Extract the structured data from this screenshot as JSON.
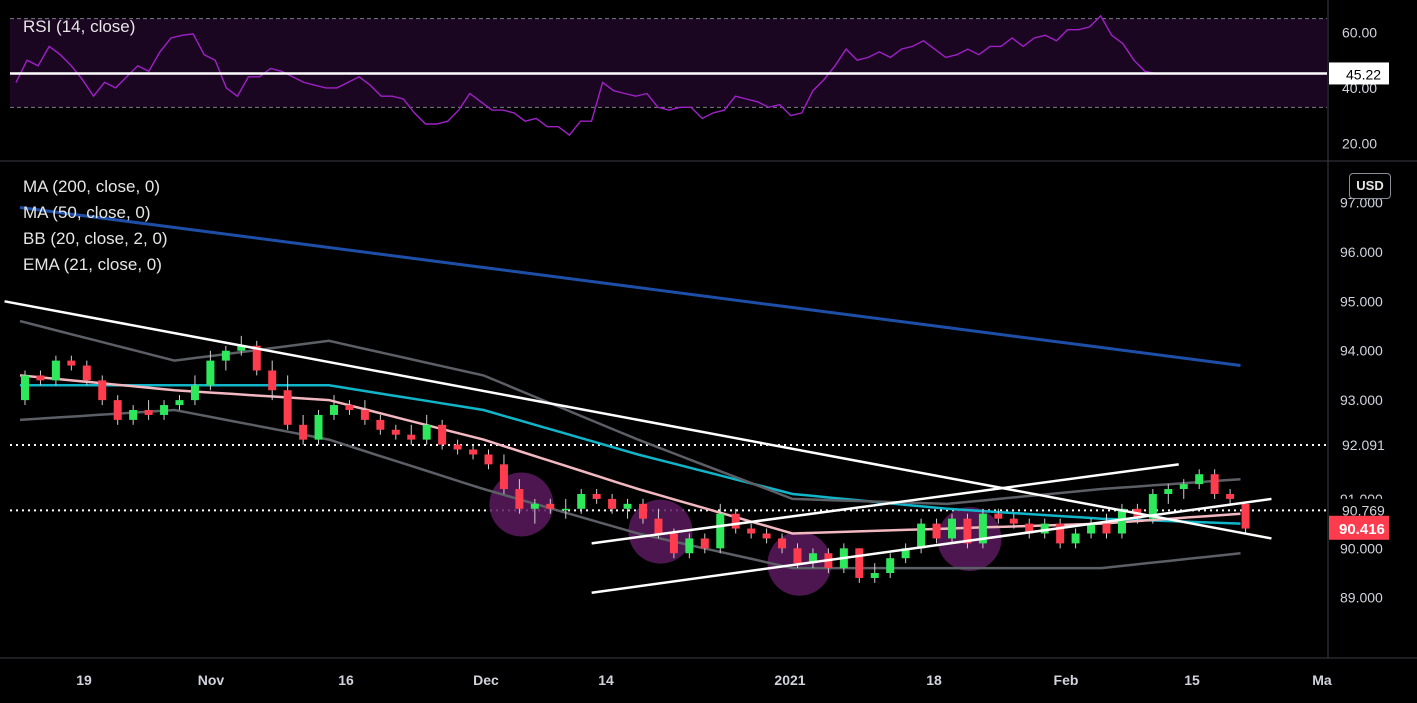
{
  "rsi_panel": {
    "legend": "RSI (14, close)",
    "current_label": "45.22"
  },
  "price_panel": {
    "indicators": [
      "MA (200, close, 0)",
      "MA (50, close, 0)",
      "BB (20, close, 2, 0)",
      "EMA (21, close, 0)"
    ],
    "currency": "USD",
    "current_price_label": "90.416",
    "level_labels": [
      "92.091",
      "90.769"
    ]
  },
  "colors": {
    "background": "#000000",
    "up": "#2ee85c",
    "down": "#ff3b4e",
    "ma200": "#1e4fa8",
    "ma50": "#11b5c9",
    "ema21": "#f2b8c0",
    "bb": "#5c5f66",
    "rsi": "#a020c8",
    "rsi_band": "#1a0620",
    "highlight": "#5a1a5e"
  },
  "chart_data": [
    {
      "type": "line",
      "title": "RSI (14, close)",
      "yticks": [
        20,
        40,
        60
      ],
      "ytick_labels": [
        "20.00",
        "40.00",
        "60.00"
      ],
      "ylim": [
        14,
        71
      ],
      "band": [
        33,
        65
      ],
      "reference_line": 45.22,
      "series": [
        {
          "values": [
            42,
            50,
            48,
            55,
            52,
            48,
            43,
            37,
            42,
            40,
            44,
            48,
            46,
            53,
            58,
            59,
            59.5,
            52,
            50,
            40,
            37,
            44,
            44,
            47,
            46,
            44,
            42,
            41,
            40,
            40,
            42,
            44,
            41,
            37,
            37,
            36,
            31,
            27,
            27,
            28,
            32,
            38,
            35,
            32,
            32,
            31,
            28,
            29,
            26,
            26,
            23,
            28,
            28,
            42,
            39,
            38,
            37,
            38,
            33,
            32,
            33,
            33,
            29,
            31,
            32,
            37,
            36,
            35,
            33,
            34,
            30,
            31,
            39,
            43,
            48,
            54,
            50,
            51,
            53,
            51,
            54,
            55,
            57,
            54,
            51,
            52,
            54,
            52,
            55,
            55,
            58,
            55,
            58,
            59,
            57,
            61,
            61,
            62,
            66,
            59,
            56,
            50,
            46,
            45.22
          ]
        }
      ]
    },
    {
      "type": "candlestick",
      "title": "",
      "yticks": [
        89,
        90,
        91,
        92,
        93,
        94,
        95,
        96,
        97
      ],
      "ytick_labels": [
        "89.000",
        "90.000",
        "91.000",
        "92.000",
        "93.000",
        "94.000",
        "95.000",
        "96.000",
        "97.000"
      ],
      "ylim": [
        87.8,
        97.8
      ],
      "x_labels": [
        "19",
        "Nov",
        "16",
        "Dec",
        "14",
        "2021",
        "18",
        "Feb",
        "15",
        "Ma"
      ],
      "horizontal_levels": [
        92.091,
        90.769
      ],
      "last_close": 90.416,
      "candles": [
        [
          93.0,
          93.6,
          92.9,
          93.5
        ],
        [
          93.5,
          93.6,
          93.3,
          93.4
        ],
        [
          93.4,
          93.9,
          93.3,
          93.8
        ],
        [
          93.8,
          93.9,
          93.6,
          93.7
        ],
        [
          93.7,
          93.8,
          93.3,
          93.4
        ],
        [
          93.4,
          93.5,
          92.9,
          93.0
        ],
        [
          93.0,
          93.1,
          92.5,
          92.6
        ],
        [
          92.6,
          92.9,
          92.5,
          92.8
        ],
        [
          92.8,
          93.0,
          92.6,
          92.7
        ],
        [
          92.7,
          93.0,
          92.6,
          92.9
        ],
        [
          92.9,
          93.1,
          92.8,
          93.0
        ],
        [
          93.0,
          93.5,
          92.9,
          93.3
        ],
        [
          93.3,
          94.0,
          93.2,
          93.8
        ],
        [
          93.8,
          94.1,
          93.6,
          94.0
        ],
        [
          94.0,
          94.3,
          93.9,
          94.1
        ],
        [
          94.1,
          94.2,
          93.5,
          93.6
        ],
        [
          93.6,
          93.8,
          93.0,
          93.2
        ],
        [
          93.2,
          93.5,
          92.4,
          92.5
        ],
        [
          92.5,
          92.7,
          92.1,
          92.2
        ],
        [
          92.2,
          92.8,
          92.1,
          92.7
        ],
        [
          92.7,
          93.1,
          92.6,
          92.9
        ],
        [
          92.9,
          93.0,
          92.7,
          92.8
        ],
        [
          92.8,
          93.0,
          92.5,
          92.6
        ],
        [
          92.6,
          92.7,
          92.3,
          92.4
        ],
        [
          92.4,
          92.5,
          92.2,
          92.3
        ],
        [
          92.3,
          92.5,
          92.1,
          92.2
        ],
        [
          92.2,
          92.7,
          92.1,
          92.5
        ],
        [
          92.5,
          92.6,
          92.0,
          92.1
        ],
        [
          92.1,
          92.2,
          91.9,
          92.0
        ],
        [
          92.0,
          92.1,
          91.8,
          91.9
        ],
        [
          91.9,
          92.0,
          91.6,
          91.7
        ],
        [
          91.7,
          91.9,
          91.1,
          91.2
        ],
        [
          91.2,
          91.4,
          90.7,
          90.8
        ],
        [
          90.8,
          91.0,
          90.5,
          90.9
        ],
        [
          90.9,
          91.0,
          90.7,
          90.8
        ],
        [
          90.8,
          91.0,
          90.6,
          90.8
        ],
        [
          90.8,
          91.2,
          90.7,
          91.1
        ],
        [
          91.1,
          91.2,
          90.9,
          91.0
        ],
        [
          91.0,
          91.1,
          90.7,
          90.8
        ],
        [
          90.8,
          91.0,
          90.6,
          90.9
        ],
        [
          90.9,
          91.0,
          90.5,
          90.6
        ],
        [
          90.6,
          90.8,
          90.2,
          90.3
        ],
        [
          90.3,
          90.4,
          89.8,
          89.9
        ],
        [
          89.9,
          90.3,
          89.8,
          90.2
        ],
        [
          90.2,
          90.3,
          89.9,
          90.0
        ],
        [
          90.0,
          90.9,
          89.9,
          90.7
        ],
        [
          90.7,
          90.8,
          90.3,
          90.4
        ],
        [
          90.4,
          90.5,
          90.2,
          90.3
        ],
        [
          90.3,
          90.4,
          90.1,
          90.2
        ],
        [
          90.2,
          90.3,
          89.9,
          90.0
        ],
        [
          90.0,
          90.1,
          89.6,
          89.7
        ],
        [
          89.7,
          90.0,
          89.6,
          89.9
        ],
        [
          89.9,
          90.0,
          89.5,
          89.6
        ],
        [
          89.6,
          90.1,
          89.5,
          90.0
        ],
        [
          90.0,
          90.0,
          89.3,
          89.4
        ],
        [
          89.4,
          89.7,
          89.3,
          89.5
        ],
        [
          89.5,
          89.9,
          89.4,
          89.8
        ],
        [
          89.8,
          90.1,
          89.7,
          90.0
        ],
        [
          90.0,
          90.6,
          89.9,
          90.5
        ],
        [
          90.5,
          90.6,
          90.1,
          90.2
        ],
        [
          90.2,
          90.7,
          90.1,
          90.6
        ],
        [
          90.6,
          90.7,
          90.0,
          90.1
        ],
        [
          90.1,
          90.8,
          90.0,
          90.7
        ],
        [
          90.7,
          90.8,
          90.5,
          90.6
        ],
        [
          90.6,
          90.7,
          90.4,
          90.5
        ],
        [
          90.5,
          90.6,
          90.2,
          90.3
        ],
        [
          90.3,
          90.6,
          90.2,
          90.5
        ],
        [
          90.5,
          90.6,
          90.0,
          90.1
        ],
        [
          90.1,
          90.4,
          90.0,
          90.3
        ],
        [
          90.3,
          90.6,
          90.2,
          90.5
        ],
        [
          90.5,
          90.7,
          90.2,
          90.3
        ],
        [
          90.3,
          90.9,
          90.2,
          90.8
        ],
        [
          90.8,
          90.9,
          90.5,
          90.6
        ],
        [
          90.6,
          91.2,
          90.5,
          91.1
        ],
        [
          91.1,
          91.3,
          90.9,
          91.2
        ],
        [
          91.2,
          91.4,
          91.0,
          91.3
        ],
        [
          91.3,
          91.6,
          91.2,
          91.5
        ],
        [
          91.5,
          91.6,
          91.0,
          91.1
        ],
        [
          91.1,
          91.2,
          90.9,
          91.0
        ],
        [
          90.9,
          90.9,
          90.3,
          90.4
        ]
      ],
      "series": [
        {
          "name": "MA (200, close, 0)",
          "x": [
            0,
            79
          ],
          "values": [
            96.9,
            93.7
          ]
        },
        {
          "name": "MA (50, close, 0)",
          "x": [
            0,
            10,
            20,
            30,
            40,
            50,
            60,
            70,
            79
          ],
          "values": [
            93.3,
            93.3,
            93.3,
            92.8,
            91.9,
            91.1,
            90.8,
            90.6,
            90.5
          ]
        },
        {
          "name": "EMA (21, close, 0)",
          "x": [
            0,
            10,
            20,
            30,
            40,
            50,
            60,
            70,
            79
          ],
          "values": [
            93.5,
            93.2,
            93.0,
            92.2,
            91.2,
            90.3,
            90.4,
            90.5,
            90.7
          ]
        },
        {
          "name": "BB upper",
          "x": [
            0,
            10,
            20,
            30,
            40,
            50,
            60,
            70,
            79
          ],
          "values": [
            94.6,
            93.8,
            94.2,
            93.5,
            92.2,
            91.0,
            90.9,
            91.2,
            91.4
          ]
        },
        {
          "name": "BB lower",
          "x": [
            0,
            10,
            20,
            30,
            40,
            50,
            60,
            70,
            79
          ],
          "values": [
            92.6,
            92.8,
            92.2,
            91.2,
            90.3,
            89.6,
            89.6,
            89.6,
            89.9
          ]
        }
      ],
      "trendlines": [
        {
          "x": [
            -1,
            81
          ],
          "values": [
            95.0,
            90.2
          ]
        },
        {
          "x": [
            37,
            81
          ],
          "values": [
            89.1,
            91.0
          ]
        },
        {
          "x": [
            37,
            75
          ],
          "values": [
            90.1,
            91.7
          ]
        }
      ],
      "highlight_circles_at": [
        32,
        41,
        50,
        61
      ]
    }
  ]
}
